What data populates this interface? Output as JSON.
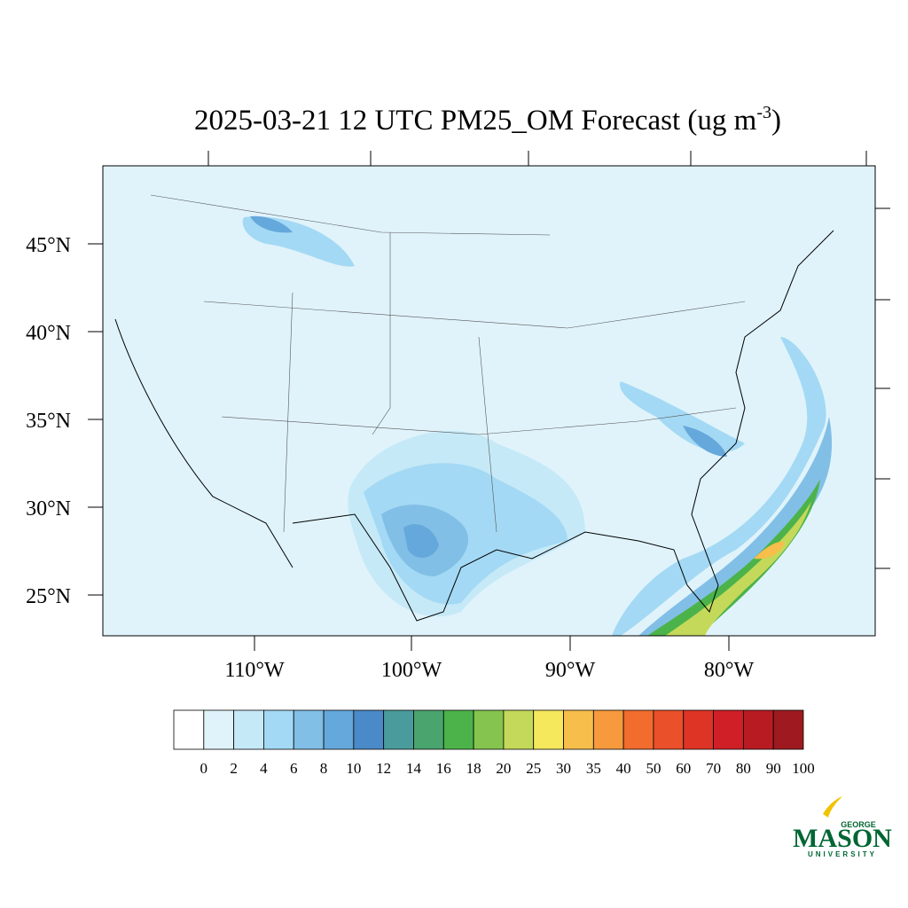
{
  "map": {
    "title": {
      "main": "2025-03-21 12 UTC PM25_OM Forecast (ug m",
      "superscript": "-3",
      "close": ")"
    },
    "lat_labels": [
      "45°N",
      "40°N",
      "35°N",
      "30°N",
      "25°N"
    ],
    "lon_labels": [
      "110°W",
      "100°W",
      "90°W",
      "80°W"
    ]
  },
  "colorbar": {
    "colors": [
      "#ffffff",
      "#e0f3fb",
      "#c6e9f7",
      "#a3d9f4",
      "#82bfe6",
      "#65a8db",
      "#4a8ac8",
      "#4a9c9c",
      "#4aa46e",
      "#4cb34a",
      "#85c44e",
      "#c4d95a",
      "#f6e85c",
      "#f7be4b",
      "#f69a3d",
      "#f26c2e",
      "#ea5029",
      "#de3426",
      "#d01f27",
      "#b81c22",
      "#9e1a20"
    ],
    "labels": [
      0,
      2,
      4,
      6,
      8,
      10,
      12,
      14,
      16,
      18,
      20,
      25,
      30,
      35,
      40,
      50,
      60,
      70,
      80,
      90,
      100
    ]
  },
  "logo": {
    "top": "GEORGE",
    "main": "MASON",
    "bottom": "UNIVERSITY"
  }
}
